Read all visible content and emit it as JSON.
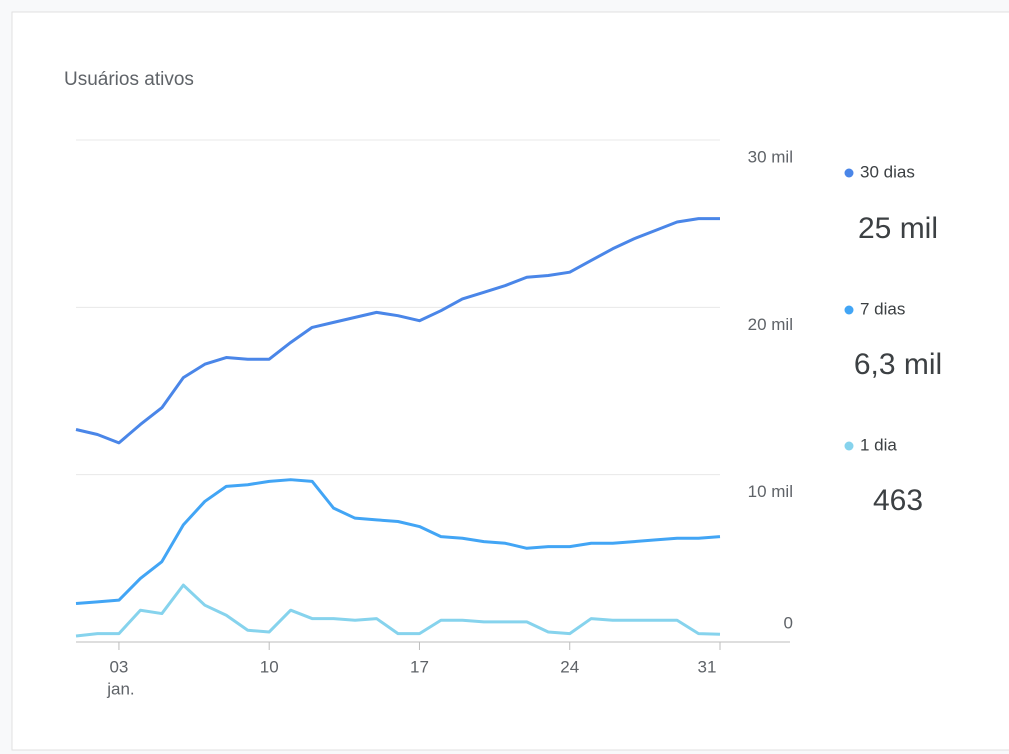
{
  "chart_data": {
    "type": "line",
    "title": "Usuários ativos",
    "x": [
      1,
      2,
      3,
      4,
      5,
      6,
      7,
      8,
      9,
      10,
      11,
      12,
      13,
      14,
      15,
      16,
      17,
      18,
      19,
      20,
      21,
      22,
      23,
      24,
      25,
      26,
      27,
      28,
      29,
      30,
      31
    ],
    "xlim": [
      1,
      31
    ],
    "xticks": [
      {
        "value": 3,
        "label": "03"
      },
      10,
      17,
      24,
      31
    ],
    "x_month_label": "jan.",
    "ylim": [
      0,
      30000
    ],
    "yticks": [
      0,
      {
        "value": 10000,
        "label": "10 mil"
      },
      {
        "value": 20000,
        "label": "20 mil"
      },
      {
        "value": 30000,
        "label": "30 mil"
      }
    ],
    "grid": true,
    "series": [
      {
        "name": "30 dias",
        "color": "#4a86e8",
        "summary_label": "25 mil",
        "values": [
          12700,
          12400,
          11900,
          13000,
          14000,
          15800,
          16600,
          17000,
          16900,
          16900,
          17900,
          18800,
          19100,
          19400,
          19700,
          19500,
          19200,
          19800,
          20500,
          20900,
          21300,
          21800,
          21900,
          22100,
          22800,
          23500,
          24100,
          24600,
          25100,
          25300,
          25300
        ]
      },
      {
        "name": "7 dias",
        "color": "#42a5f5",
        "summary_label": "6,3 mil",
        "values": [
          2300,
          2400,
          2500,
          3800,
          4800,
          7000,
          8400,
          9300,
          9400,
          9600,
          9700,
          9600,
          8000,
          7400,
          7300,
          7200,
          6900,
          6300,
          6200,
          6000,
          5900,
          5600,
          5700,
          5700,
          5900,
          5900,
          6000,
          6100,
          6200,
          6200,
          6300
        ]
      },
      {
        "name": "1 dia",
        "color": "#86d3ed",
        "summary_label": "463",
        "values": [
          360,
          500,
          500,
          1900,
          1700,
          3400,
          2200,
          1600,
          700,
          600,
          1900,
          1400,
          1400,
          1300,
          1400,
          500,
          500,
          1300,
          1300,
          1200,
          1200,
          1200,
          600,
          500,
          1400,
          1300,
          1300,
          1300,
          1300,
          500,
          463
        ]
      }
    ]
  }
}
